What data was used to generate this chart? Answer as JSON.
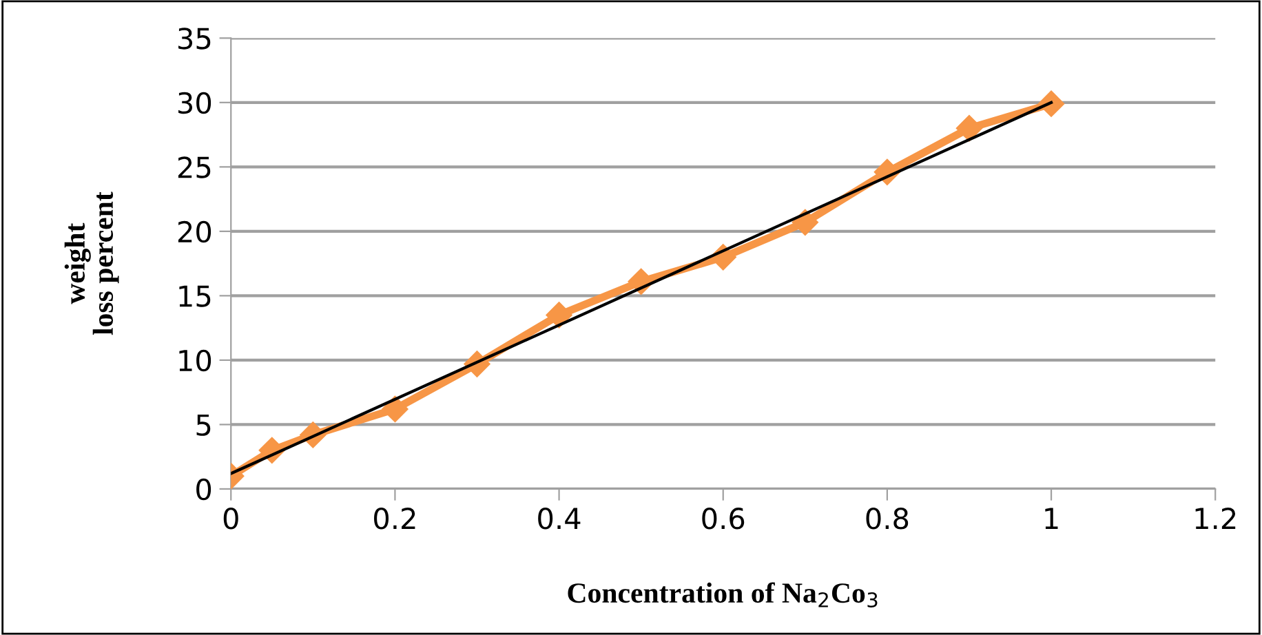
{
  "chart_data": {
    "type": "line",
    "xlabel": "Concentration of Na$_{2}$Co$_{3}$",
    "ylabel": "weight\nloss percent",
    "series": [
      {
        "color": "#f79646",
        "marker": "diamond",
        "x": [
          0,
          0.05,
          0.1,
          0.2,
          0.3,
          0.4,
          0.5,
          0.6,
          0.7,
          0.8,
          0.9,
          1
        ],
        "values": [
          1,
          3,
          4.2,
          6.2,
          9.7,
          13.5,
          16.1,
          18,
          20.7,
          24.6,
          28,
          29.9
        ]
      },
      {
        "color": "#000000",
        "marker": "none",
        "x": [
          0,
          1
        ],
        "values": [
          1.2,
          30
        ]
      }
    ],
    "xlim": [
      0,
      1.2
    ],
    "xticks": [
      0,
      0.2,
      0.4,
      0.6,
      0.8,
      1,
      1.2
    ],
    "ylim": [
      0,
      35
    ],
    "yticks": [
      0,
      5,
      10,
      15,
      20,
      25,
      30,
      35
    ],
    "grid": "y",
    "line_style": "solid"
  }
}
